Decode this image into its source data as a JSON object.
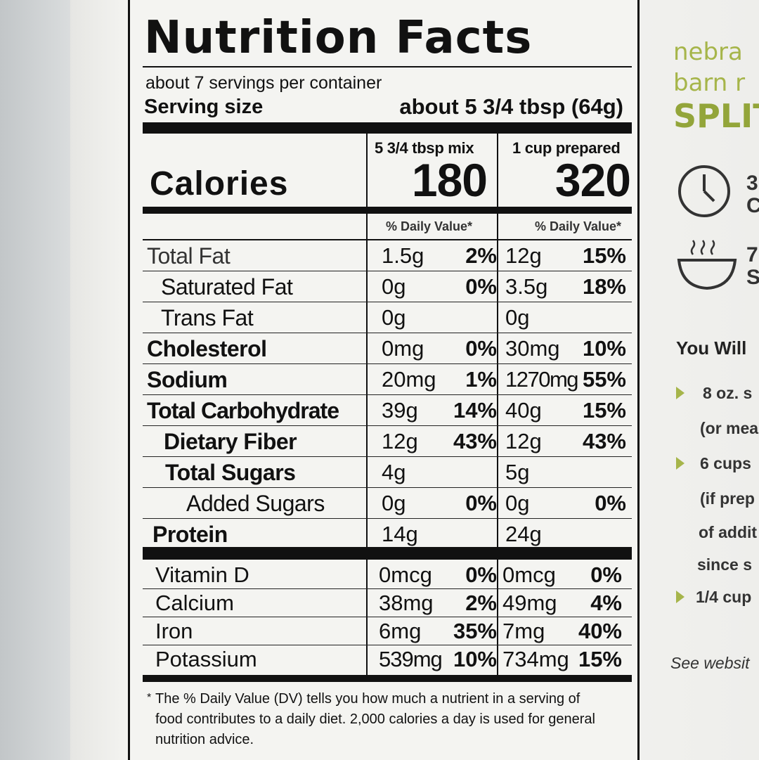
{
  "label": {
    "title": "Nutrition Facts",
    "servings_per_container": "about 7 servings per container",
    "serving_size_label": "Serving size",
    "serving_size_value": "about 5 3/4 tbsp (64g)",
    "col1_header": "5 3/4 tbsp mix",
    "col2_header": "1 cup prepared",
    "calories_label": "Calories",
    "calories_col1": "180",
    "calories_col2": "320",
    "dv_header": "% Daily Value*",
    "nutrients": [
      {
        "name": "Total Fat",
        "amt1": "1.5g",
        "pct1": "2%",
        "amt2": "12g",
        "pct2": "15%"
      },
      {
        "name": "Saturated Fat",
        "amt1": "0g",
        "pct1": "0%",
        "amt2": "3.5g",
        "pct2": "18%"
      },
      {
        "name": "Trans Fat",
        "amt1": "0g",
        "pct1": "",
        "amt2": "0g",
        "pct2": ""
      },
      {
        "name": "Cholesterol",
        "amt1": "0mg",
        "pct1": "0%",
        "amt2": "30mg",
        "pct2": "10%"
      },
      {
        "name": "Sodium",
        "amt1": "20mg",
        "pct1": "1%",
        "amt2": "1270mg",
        "pct2": "55%"
      },
      {
        "name": "Total Carbohydrate",
        "amt1": "39g",
        "pct1": "14%",
        "amt2": "40g",
        "pct2": "15%"
      },
      {
        "name": "Dietary Fiber",
        "amt1": "12g",
        "pct1": "43%",
        "amt2": "12g",
        "pct2": "43%"
      },
      {
        "name": "Total Sugars",
        "amt1": "4g",
        "pct1": "",
        "amt2": "5g",
        "pct2": ""
      },
      {
        "name": "Added Sugars",
        "amt1": "0g",
        "pct1": "0%",
        "amt2": "0g",
        "pct2": "0%"
      },
      {
        "name": "Protein",
        "amt1": "14g",
        "pct1": "",
        "amt2": "24g",
        "pct2": ""
      }
    ],
    "vitamins": [
      {
        "name": "Vitamin D",
        "amt1": "0mcg",
        "pct1": "0%",
        "amt2": "0mcg",
        "pct2": "0%"
      },
      {
        "name": "Calcium",
        "amt1": "38mg",
        "pct1": "2%",
        "amt2": "49mg",
        "pct2": "4%"
      },
      {
        "name": "Iron",
        "amt1": "6mg",
        "pct1": "35%",
        "amt2": "7mg",
        "pct2": "40%"
      },
      {
        "name": "Potassium",
        "amt1": "539mg",
        "pct1": "10%",
        "amt2": "734mg",
        "pct2": "15%"
      }
    ],
    "footnote_star": "*",
    "footnote": "The % Daily Value (DV) tells you how much a nutrient in a serving of food contributes to a daily diet. 2,000 calories a day is used for general nutrition advice."
  },
  "side_panel": {
    "brand_line1": "nebra",
    "brand_line2": "barn r",
    "brand_line3": "SPLIT",
    "clock_text1": "3",
    "clock_text2": "C",
    "bowl_text1": "7",
    "bowl_text2": "S",
    "you_will": "You Will",
    "items": [
      "8 oz. s",
      "(or mea",
      "6 cups",
      "(if prep",
      "of addit",
      "since s",
      "1/4 cup"
    ],
    "see_website": "See websit"
  },
  "colors": {
    "brand_green": "#a6b54a",
    "ink": "#111111",
    "label_bg": "#f4f4f1"
  }
}
